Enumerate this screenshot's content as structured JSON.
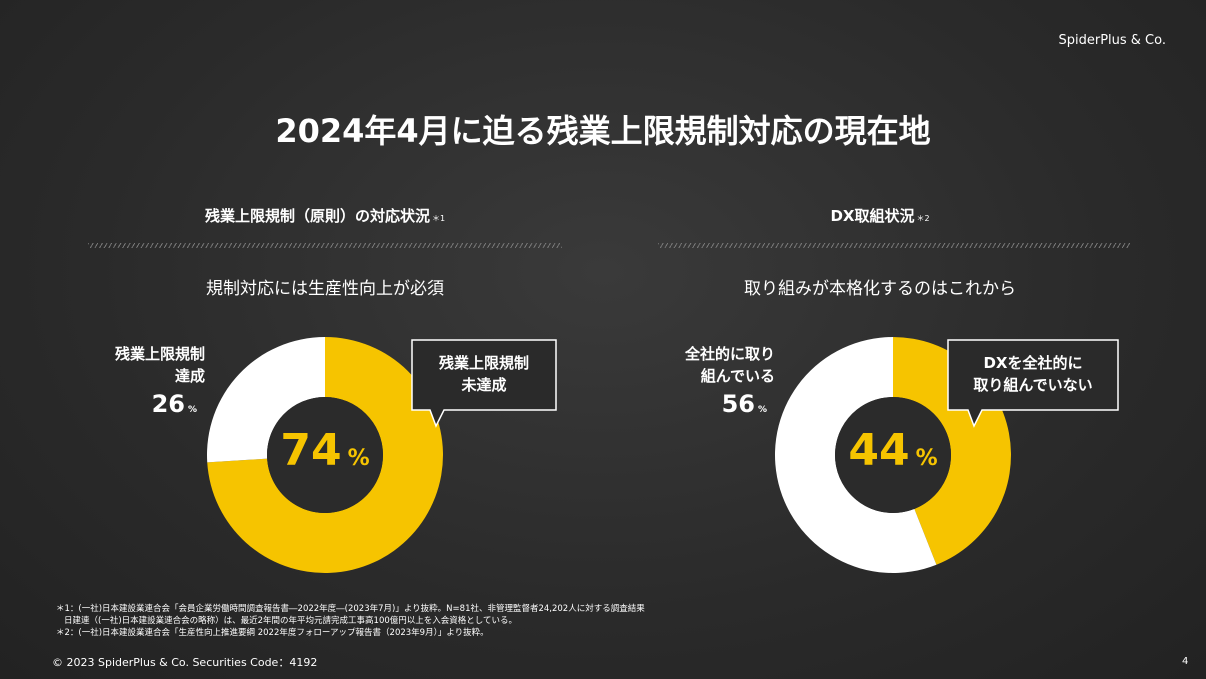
{
  "brand": "SpiderPlus & Co.",
  "title": "2024年4月に迫る残業上限規制対応の現在地",
  "chart_data": [
    {
      "type": "pie",
      "donut": true,
      "title": "残業上限規制（原則）の対応状況",
      "title_note": "＊1",
      "subtitle": "規制対応には生産性向上が必須",
      "categories": [
        "残業上限規制\n未達成",
        "残業上限規制\n達成"
      ],
      "values": [
        74,
        26
      ],
      "colors": [
        "#f6c400",
        "#ffffff"
      ],
      "unit": "%"
    },
    {
      "type": "pie",
      "donut": true,
      "title": "DX取組状況",
      "title_note": "＊2",
      "subtitle": "取り組みが本格化するのはこれから",
      "categories": [
        "DXを全社的に\n取り組んでいない",
        "全社的に取り\n組んでいる"
      ],
      "values": [
        44,
        56
      ],
      "colors": [
        "#f6c400",
        "#ffffff"
      ],
      "unit": "%"
    }
  ],
  "footnotes": [
    "＊1：(一社)日本建設業連合会「会員企業労働時間調査報告書―2022年度―(2023年7月)」より抜粋。N=81社、非管理監督者24,202人に対する調査結果",
    "日建連（(一社)日本建設業連合会の略称）は、最近2年間の年平均元請完成工事高100億円以上を入会資格としている。",
    "＊2：(一社)日本建設業連合会「生産性向上推進要綱 2022年度フォローアップ報告書（2023年9月）」より抜粋。"
  ],
  "footer": "© 2023 SpiderPlus & Co.  Securities Code：4192",
  "page_number": "4"
}
